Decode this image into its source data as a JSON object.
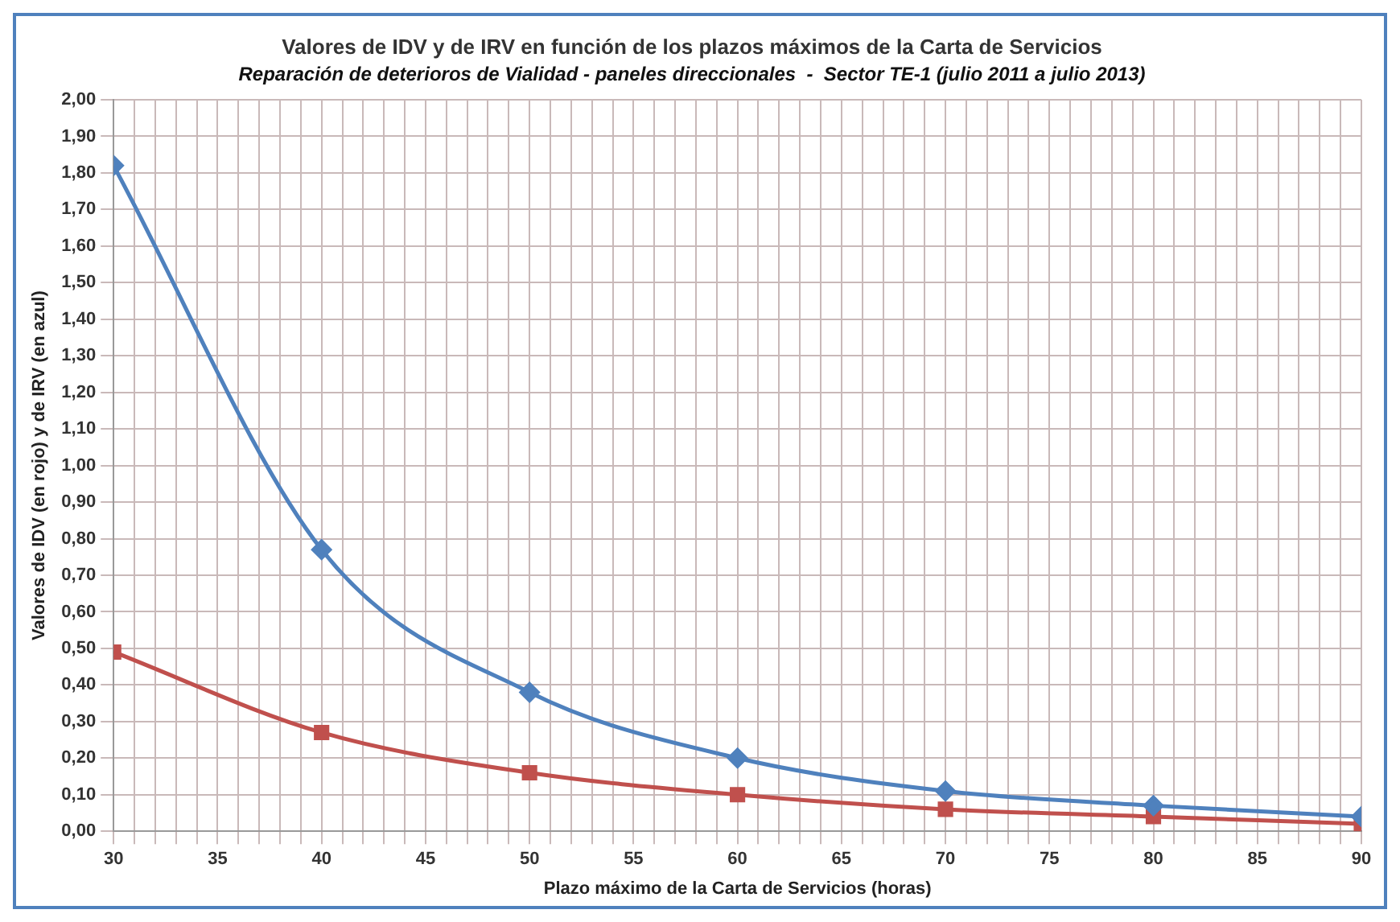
{
  "chart_data": {
    "type": "line",
    "title": "Valores de IDV y de IRV en función de los plazos máximos de la Carta de Servicios",
    "subtitle": "Reparación de deterioros de Vialidad - paneles direccionales  -  Sector TE-1 (julio 2011 a julio 2013)",
    "xlabel": "Plazo máximo de la Carta de Servicios (horas)",
    "ylabel": "Valores de IDV (en rojo) y de IRV (en azul)",
    "x": [
      30,
      40,
      50,
      60,
      70,
      80,
      90
    ],
    "series": [
      {
        "color": "#4f81bd",
        "marker": "diamond",
        "values": [
          1.82,
          0.77,
          0.38,
          0.2,
          0.11,
          0.07,
          0.04
        ]
      },
      {
        "color": "#c0504d",
        "marker": "square",
        "values": [
          0.49,
          0.27,
          0.16,
          0.1,
          0.06,
          0.04,
          0.02
        ]
      }
    ],
    "xlim": [
      30,
      90
    ],
    "xticks": [
      30,
      {
        "value": 31,
        "label": null
      },
      {
        "value": 32,
        "label": null
      },
      {
        "value": 33,
        "label": null
      },
      {
        "value": 34,
        "label": null
      },
      35,
      {
        "value": 36,
        "label": null
      },
      {
        "value": 37,
        "label": null
      },
      {
        "value": 38,
        "label": null
      },
      {
        "value": 39,
        "label": null
      },
      40,
      {
        "value": 41,
        "label": null
      },
      {
        "value": 42,
        "label": null
      },
      {
        "value": 43,
        "label": null
      },
      {
        "value": 44,
        "label": null
      },
      45,
      {
        "value": 46,
        "label": null
      },
      {
        "value": 47,
        "label": null
      },
      {
        "value": 48,
        "label": null
      },
      {
        "value": 49,
        "label": null
      },
      50,
      {
        "value": 51,
        "label": null
      },
      {
        "value": 52,
        "label": null
      },
      {
        "value": 53,
        "label": null
      },
      {
        "value": 54,
        "label": null
      },
      55,
      {
        "value": 56,
        "label": null
      },
      {
        "value": 57,
        "label": null
      },
      {
        "value": 58,
        "label": null
      },
      {
        "value": 59,
        "label": null
      },
      60,
      {
        "value": 61,
        "label": null
      },
      {
        "value": 62,
        "label": null
      },
      {
        "value": 63,
        "label": null
      },
      {
        "value": 64,
        "label": null
      },
      65,
      {
        "value": 66,
        "label": null
      },
      {
        "value": 67,
        "label": null
      },
      {
        "value": 68,
        "label": null
      },
      {
        "value": 69,
        "label": null
      },
      70,
      {
        "value": 71,
        "label": null
      },
      {
        "value": 72,
        "label": null
      },
      {
        "value": 73,
        "label": null
      },
      {
        "value": 74,
        "label": null
      },
      75,
      {
        "value": 76,
        "label": null
      },
      {
        "value": 77,
        "label": null
      },
      {
        "value": 78,
        "label": null
      },
      {
        "value": 79,
        "label": null
      },
      80,
      {
        "value": 81,
        "label": null
      },
      {
        "value": 82,
        "label": null
      },
      {
        "value": 83,
        "label": null
      },
      {
        "value": 84,
        "label": null
      },
      85,
      {
        "value": 86,
        "label": null
      },
      {
        "value": 87,
        "label": null
      },
      {
        "value": 88,
        "label": null
      },
      {
        "value": 89,
        "label": null
      },
      90
    ],
    "ylim": [
      0,
      2
    ],
    "yticks": [
      {
        "value": 0,
        "label": "0,00"
      },
      {
        "value": 0.1,
        "label": "0,10"
      },
      {
        "value": 0.2,
        "label": "0,20"
      },
      {
        "value": 0.3,
        "label": "0,30"
      },
      {
        "value": 0.4,
        "label": "0,40"
      },
      {
        "value": 0.5,
        "label": "0,50"
      },
      {
        "value": 0.6,
        "label": "0,60"
      },
      {
        "value": 0.7,
        "label": "0,70"
      },
      {
        "value": 0.8,
        "label": "0,80"
      },
      {
        "value": 0.9,
        "label": "0,90"
      },
      {
        "value": 1,
        "label": "1,00"
      },
      {
        "value": 1.1,
        "label": "1,10"
      },
      {
        "value": 1.2,
        "label": "1,20"
      },
      {
        "value": 1.3,
        "label": "1,30"
      },
      {
        "value": 1.4,
        "label": "1,40"
      },
      {
        "value": 1.5,
        "label": "1,50"
      },
      {
        "value": 1.6,
        "label": "1,60"
      },
      {
        "value": 1.7,
        "label": "1,70"
      },
      {
        "value": 1.8,
        "label": "1,80"
      },
      {
        "value": 1.9,
        "label": "1,90"
      },
      {
        "value": 2,
        "label": "2,00"
      }
    ],
    "grid": true
  }
}
